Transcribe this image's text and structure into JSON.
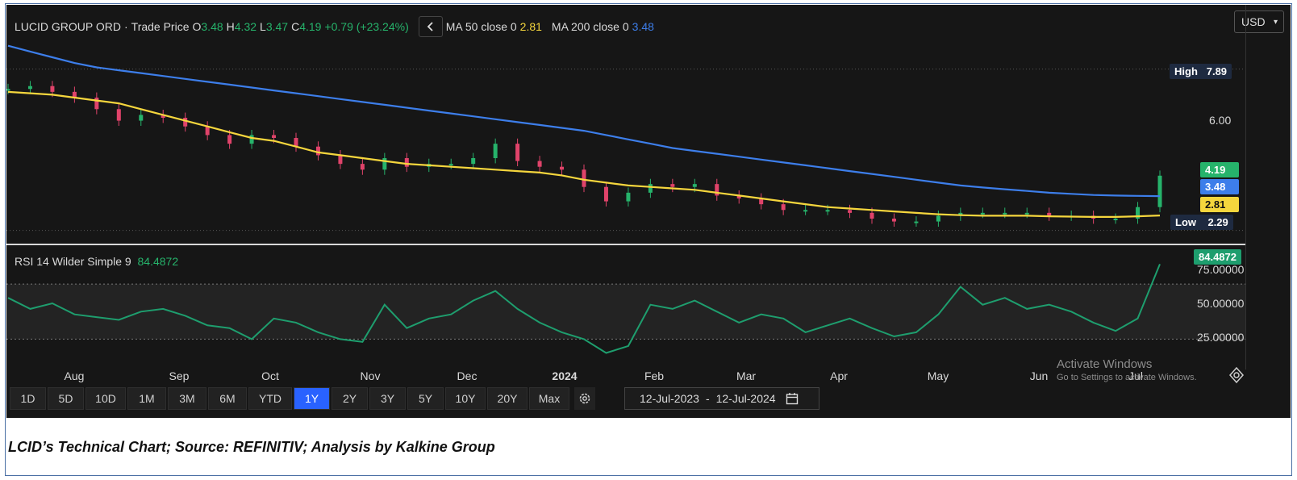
{
  "header": {
    "symbol": "LUCID GROUP ORD",
    "dot": "·",
    "price_label": "Trade Price",
    "o_label": "O",
    "o_value": "3.48",
    "h_label": "H",
    "h_value": "4.32",
    "l_label": "L",
    "l_value": "3.47",
    "c_label": "C",
    "c_value": "4.19",
    "change": "+0.79 (+23.24%)",
    "collapse_icon": "chevron-left-icon",
    "ma50_label": "MA 50 close 0",
    "ma50_value": "2.81",
    "ma200_label": "MA 200 close 0",
    "ma200_value": "3.48"
  },
  "currency": "USD",
  "price_axis": {
    "high_label": "High",
    "high_value": "7.89",
    "tick_6": "6.00",
    "close_tag": "4.19",
    "ma200_tag": "3.48",
    "ma50_tag": "2.81",
    "low_label": "Low",
    "low_value": "2.29"
  },
  "rsi": {
    "label": "RSI 14 Wilder Simple 9",
    "value": "84.4872",
    "tag": "84.4872",
    "ticks": [
      "75.00000",
      "50.00000",
      "25.00000"
    ]
  },
  "x_axis": {
    "months": [
      "Aug",
      "Sep",
      "Oct",
      "Nov",
      "Dec",
      "2024",
      "Feb",
      "Mar",
      "Apr",
      "May",
      "Jun",
      "Jul"
    ]
  },
  "toolbar": {
    "ranges": [
      "1D",
      "5D",
      "10D",
      "1M",
      "3M",
      "6M",
      "YTD",
      "1Y",
      "2Y",
      "3Y",
      "5Y",
      "10Y",
      "20Y",
      "Max"
    ],
    "active": "1Y",
    "date_from": "12-Jul-2023",
    "date_to": "12-Jul-2024",
    "dash": "-"
  },
  "watermark": {
    "line1": "Activate Windows",
    "line2": "Go to Settings to activate Windows."
  },
  "caption": "LCID’s Technical Chart; Source: REFINITIV; Analysis by Kalkine Group",
  "colors": {
    "background": "#161616",
    "up": "#26b36b",
    "down": "#e0436a",
    "ma50": "#f5d63d",
    "ma200": "#3d7eea",
    "rsi": "#1e9e6e",
    "high_low_tag": "#1e2a40"
  },
  "chart_data": [
    {
      "type": "candlestick",
      "title": "LUCID GROUP ORD",
      "x": [
        "2023-07-12",
        "2023-07-19",
        "2023-07-26",
        "2023-08-02",
        "2023-08-09",
        "2023-08-16",
        "2023-08-23",
        "2023-08-30",
        "2023-09-06",
        "2023-09-13",
        "2023-09-20",
        "2023-09-27",
        "2023-10-04",
        "2023-10-11",
        "2023-10-18",
        "2023-10-25",
        "2023-11-01",
        "2023-11-08",
        "2023-11-15",
        "2023-11-22",
        "2023-11-29",
        "2023-12-06",
        "2023-12-13",
        "2023-12-20",
        "2023-12-27",
        "2024-01-03",
        "2024-01-10",
        "2024-01-17",
        "2024-01-24",
        "2024-01-31",
        "2024-02-07",
        "2024-02-14",
        "2024-02-21",
        "2024-02-28",
        "2024-03-06",
        "2024-03-13",
        "2024-03-20",
        "2024-03-27",
        "2024-04-03",
        "2024-04-10",
        "2024-04-17",
        "2024-04-24",
        "2024-05-01",
        "2024-05-08",
        "2024-05-15",
        "2024-05-22",
        "2024-05-29",
        "2024-06-05",
        "2024-06-12",
        "2024-06-19",
        "2024-06-26",
        "2024-07-03",
        "2024-07-12"
      ],
      "close": [
        7.2,
        7.3,
        7.1,
        6.9,
        6.5,
        6.1,
        6.3,
        6.2,
        5.9,
        5.6,
        5.3,
        5.6,
        5.5,
        5.2,
        4.9,
        4.6,
        4.4,
        4.8,
        4.5,
        4.6,
        4.6,
        4.8,
        5.3,
        4.7,
        4.5,
        4.4,
        3.8,
        3.3,
        3.6,
        3.9,
        3.8,
        3.9,
        3.5,
        3.4,
        3.2,
        3.0,
        3.0,
        3.0,
        2.9,
        2.7,
        2.6,
        2.6,
        2.8,
        2.9,
        2.9,
        2.9,
        2.9,
        2.8,
        2.8,
        2.7,
        2.7,
        3.1,
        4.19
      ],
      "ma50": [
        7.1,
        7.05,
        7.0,
        6.9,
        6.8,
        6.7,
        6.5,
        6.3,
        6.1,
        5.9,
        5.7,
        5.5,
        5.4,
        5.2,
        5.0,
        4.9,
        4.8,
        4.7,
        4.6,
        4.55,
        4.5,
        4.45,
        4.4,
        4.35,
        4.3,
        4.2,
        4.05,
        3.95,
        3.85,
        3.8,
        3.75,
        3.7,
        3.6,
        3.5,
        3.4,
        3.3,
        3.2,
        3.1,
        3.05,
        3.0,
        2.95,
        2.9,
        2.85,
        2.82,
        2.8,
        2.8,
        2.8,
        2.78,
        2.77,
        2.76,
        2.76,
        2.78,
        2.81
      ],
      "ma200": [
        8.7,
        8.5,
        8.3,
        8.1,
        7.95,
        7.85,
        7.75,
        7.65,
        7.55,
        7.45,
        7.35,
        7.25,
        7.15,
        7.05,
        6.95,
        6.85,
        6.75,
        6.65,
        6.55,
        6.45,
        6.35,
        6.25,
        6.15,
        6.05,
        5.95,
        5.85,
        5.75,
        5.6,
        5.45,
        5.3,
        5.15,
        5.05,
        4.95,
        4.85,
        4.75,
        4.65,
        4.55,
        4.45,
        4.35,
        4.25,
        4.15,
        4.05,
        3.95,
        3.85,
        3.78,
        3.72,
        3.66,
        3.6,
        3.56,
        3.52,
        3.5,
        3.49,
        3.48
      ],
      "high": 7.89,
      "low": 2.29,
      "ylim": [
        2.0,
        9.0
      ]
    },
    {
      "type": "line",
      "title": "RSI 14 Wilder Simple 9",
      "x": [
        "2023-07-12",
        "2023-07-19",
        "2023-07-26",
        "2023-08-02",
        "2023-08-09",
        "2023-08-16",
        "2023-08-23",
        "2023-08-30",
        "2023-09-06",
        "2023-09-13",
        "2023-09-20",
        "2023-09-27",
        "2023-10-04",
        "2023-10-11",
        "2023-10-18",
        "2023-10-25",
        "2023-11-01",
        "2023-11-08",
        "2023-11-15",
        "2023-11-22",
        "2023-11-29",
        "2023-12-06",
        "2023-12-13",
        "2023-12-20",
        "2023-12-27",
        "2024-01-03",
        "2024-01-10",
        "2024-01-17",
        "2024-01-24",
        "2024-01-31",
        "2024-02-07",
        "2024-02-14",
        "2024-02-21",
        "2024-02-28",
        "2024-03-06",
        "2024-03-13",
        "2024-03-20",
        "2024-03-27",
        "2024-04-03",
        "2024-04-10",
        "2024-04-17",
        "2024-04-24",
        "2024-05-01",
        "2024-05-08",
        "2024-05-15",
        "2024-05-22",
        "2024-05-29",
        "2024-06-05",
        "2024-06-12",
        "2024-06-19",
        "2024-06-26",
        "2024-07-03",
        "2024-07-12"
      ],
      "values": [
        60,
        52,
        56,
        48,
        46,
        44,
        50,
        52,
        47,
        40,
        38,
        30,
        45,
        42,
        35,
        30,
        28,
        55,
        38,
        45,
        48,
        58,
        65,
        52,
        42,
        35,
        30,
        20,
        25,
        55,
        52,
        58,
        50,
        42,
        48,
        45,
        35,
        40,
        45,
        38,
        32,
        35,
        48,
        68,
        55,
        60,
        52,
        55,
        50,
        42,
        36,
        45,
        84.49
      ],
      "overbought": 70,
      "oversold": 30,
      "ylim": [
        15,
        90
      ]
    }
  ]
}
